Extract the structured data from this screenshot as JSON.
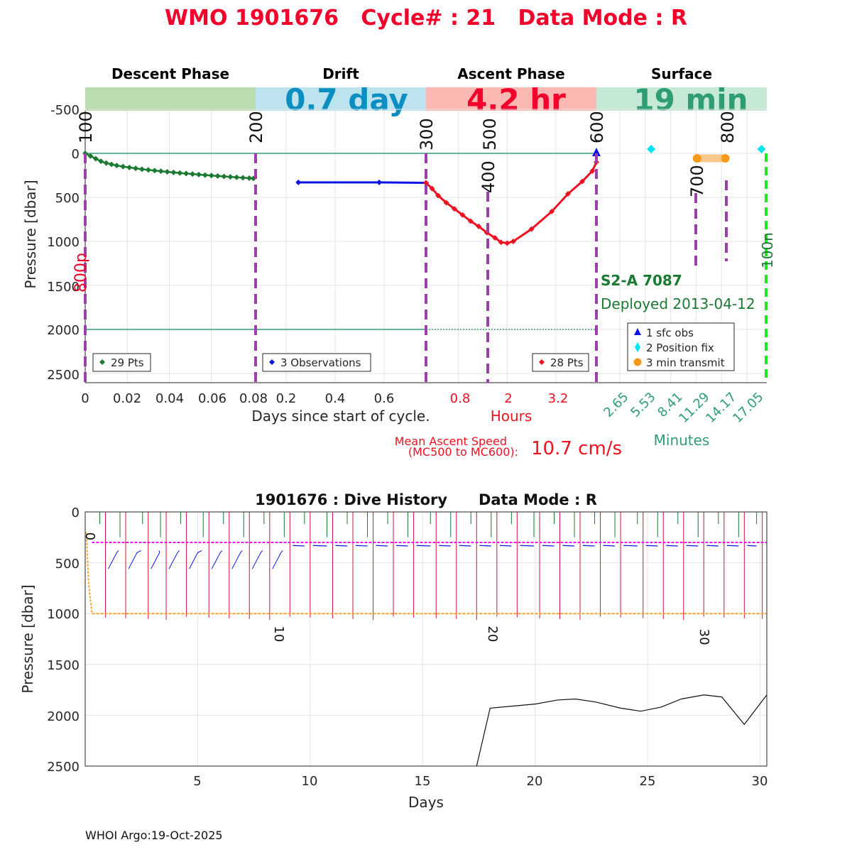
{
  "header": {
    "title": "WMO 1901676   Cycle# : 21   Data Mode : R",
    "title_color": "#f0002a"
  },
  "phases": {
    "descent": {
      "label": "Descent Phase",
      "color": "#badcae"
    },
    "drift": {
      "label": "Drift",
      "duration": "0.7 day",
      "color": "#bde3ee",
      "text_color": "#0b8ec2"
    },
    "ascent": {
      "label": "Ascent Phase",
      "duration": "4.2 hr",
      "color": "#fcb9b3",
      "text_color": "#f0002a"
    },
    "surface": {
      "label": "Surface",
      "duration": "19 min",
      "color": "#c6e9d6",
      "text_color": "#2e9d74"
    }
  },
  "colors": {
    "descent_series": "#1a7a32",
    "drift_series": "#0a14e6",
    "ascent_series": "#ee1122",
    "marker_dash": "#9a40a8",
    "ref_line": "#3a9a80",
    "surface_text": "#2e9d74",
    "float_text": "#1a7a32"
  },
  "axes": {
    "yaxis_label": "Pressure [dbar]",
    "y_ticks": [
      "-500",
      "0",
      "500",
      "1000",
      "1500",
      "2000",
      "2500"
    ],
    "x_label_days": "Days since start of cycle.",
    "x_label_hours": "Hours",
    "x_label_minutes": "Minutes",
    "descent_x_ticks": [
      "0",
      "0.02",
      "0.04",
      "0.06",
      "0.08"
    ],
    "drift_x_ticks": [
      "0.2",
      "0.4",
      "0.6"
    ],
    "ascent_x_ticks": [
      "0.8",
      "2",
      "3.2"
    ],
    "surface_x_ticks": [
      "2.65",
      "5.53",
      "8.41",
      "11.29",
      "14.17",
      "17.05"
    ]
  },
  "mc_markers": [
    "100",
    "200",
    "300",
    "400",
    "500",
    "600",
    "700",
    "800"
  ],
  "park_labels": {
    "p800": "800p",
    "m100": "100n"
  },
  "legends": {
    "descent": "29 Pts",
    "drift": "3 Observations",
    "ascent": "28 Pts",
    "surface": [
      "1 sfc obs",
      "2 Position fix",
      "3 min transmit"
    ]
  },
  "float_info": {
    "model": "S2-A 7087",
    "deployed": "Deployed 2013-04-12"
  },
  "ascent_speed": {
    "label_line1": "Mean Ascent Speed",
    "label_line2": "(MC500 to MC600):",
    "value": "10.7 cm/s"
  },
  "chart_data": [
    {
      "type": "line",
      "name": "cycle-profile",
      "ylim": [
        -500,
        2600
      ],
      "reversed_y": true,
      "reference_lines": [
        0,
        2000
      ],
      "descent": {
        "x_days": [
          0,
          0.0025,
          0.005,
          0.0075,
          0.01,
          0.0125,
          0.015,
          0.018,
          0.021,
          0.024,
          0.027,
          0.03,
          0.033,
          0.036,
          0.039,
          0.042,
          0.045,
          0.048,
          0.051,
          0.054,
          0.057,
          0.06,
          0.063,
          0.066,
          0.069,
          0.072,
          0.075,
          0.078,
          0.08
        ],
        "pressure": [
          0,
          30,
          60,
          90,
          110,
          125,
          138,
          150,
          160,
          170,
          180,
          188,
          196,
          203,
          210,
          217,
          223,
          229,
          235,
          241,
          247,
          252,
          257,
          262,
          267,
          272,
          277,
          281,
          285
        ]
      },
      "drift": {
        "x_days": [
          0.25,
          0.58,
          0.75
        ],
        "pressure": [
          330,
          330,
          335
        ]
      },
      "ascent": {
        "x_hours": [
          0,
          0.15,
          0.3,
          0.5,
          0.7,
          0.9,
          1.1,
          1.3,
          1.5,
          1.7,
          1.85,
          2.0,
          2.15,
          2.6,
          3.1,
          3.5,
          3.85,
          4.1,
          4.2
        ],
        "pressure": [
          335,
          400,
          480,
          560,
          630,
          700,
          770,
          830,
          900,
          960,
          1010,
          1020,
          1000,
          860,
          660,
          460,
          320,
          200,
          100
        ]
      },
      "surface": {
        "sfc_obs": {
          "x_minutes": 0,
          "pressure": 0
        },
        "position_fix_minutes": [
          6.2,
          18.7
        ],
        "transmit_minutes": [
          11.4,
          14.6
        ],
        "end_minute": 19.3
      }
    },
    {
      "type": "line",
      "name": "dive-history",
      "title": "1901676 : Dive History      Data Mode : R",
      "xlabel": "Days",
      "ylabel": "Pressure [dbar]",
      "xlim": [
        0,
        30.3
      ],
      "ylim": [
        0,
        2500
      ],
      "reversed_y": true,
      "x_ticks": [
        5,
        10,
        15,
        20,
        25,
        30
      ],
      "y_ticks": [
        0,
        500,
        1000,
        1500,
        2000,
        2500
      ],
      "cycle_labels": [
        {
          "text": "0",
          "day": 0.0,
          "pressure": 200
        },
        {
          "text": "10",
          "day": 8.4,
          "pressure": 1120
        },
        {
          "text": "20",
          "day": 17.9,
          "pressure": 1120
        },
        {
          "text": "30",
          "day": 27.3,
          "pressure": 1150
        }
      ],
      "park_pressure": 300,
      "profile_pressure": 1000,
      "cycle_days": [
        0.3,
        0.9,
        1.8,
        2.8,
        3.6,
        4.5,
        5.5,
        6.4,
        7.3,
        8.2,
        9.1,
        10.0,
        11.0,
        11.9,
        12.8,
        13.7,
        14.6,
        15.6,
        16.5,
        17.4,
        18.3,
        19.2,
        20.2,
        21.1,
        22.0,
        22.9,
        23.8,
        24.8,
        25.7,
        26.6,
        27.5,
        28.4,
        29.3,
        30.1
      ],
      "bottom_depth": {
        "days": [
          17.4,
          18.0,
          19.0,
          20.0,
          21.0,
          21.8,
          22.7,
          23.8,
          24.7,
          25.6,
          26.5,
          27.5,
          28.3,
          29.3,
          30.3
        ],
        "pressure": [
          2500,
          1930,
          1910,
          1890,
          1850,
          1840,
          1870,
          1930,
          1960,
          1920,
          1840,
          1800,
          1820,
          2090,
          1800
        ]
      }
    }
  ],
  "footer": {
    "credit": "WHOI Argo:19-Oct-2025"
  }
}
